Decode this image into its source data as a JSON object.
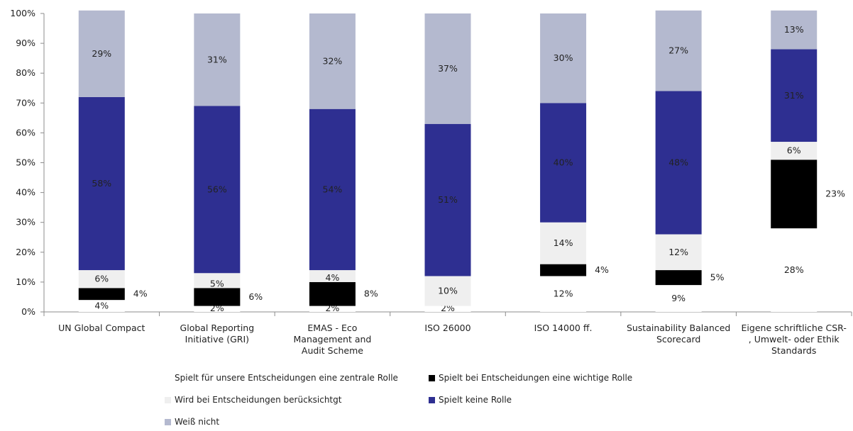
{
  "chart_data": {
    "type": "bar",
    "stacked": true,
    "ylim": [
      0,
      100
    ],
    "y_ticks": [
      "0%",
      "10%",
      "20%",
      "30%",
      "40%",
      "50%",
      "60%",
      "70%",
      "80%",
      "90%",
      "100%"
    ],
    "grid": false,
    "legend_position": "bottom",
    "categories": [
      "UN Global Compact",
      "Global Reporting Initiative (GRI)",
      "EMAS - Eco Management and Audit Scheme",
      "ISO 26000",
      "ISO 14000 ff.",
      "Sustainability Balanced Scorecard",
      "Eigene schriftliche CSR-, Umwelt- oder Ethik Standards"
    ],
    "category_lines": [
      [
        "UN Global Compact"
      ],
      [
        "Global Reporting",
        "Initiative (GRI)"
      ],
      [
        "EMAS - Eco",
        "Management and",
        "Audit Scheme"
      ],
      [
        "ISO 26000"
      ],
      [
        "ISO 14000 ff."
      ],
      [
        "Sustainability Balanced",
        "Scorecard"
      ],
      [
        "Eigene schriftliche CSR-",
        ", Umwelt- oder Ethik",
        "Standards"
      ]
    ],
    "series": [
      {
        "name": "Spielt für unsere Entscheidungen eine zentrale Rolle",
        "color": "#ffffff",
        "values": [
          4,
          2,
          2,
          2,
          12,
          9,
          28
        ],
        "labels": [
          "4%",
          "2%",
          "2%",
          "2%",
          "12%",
          "9%",
          "28%"
        ]
      },
      {
        "name": "Spielt bei Entscheidungen eine wichtige Rolle",
        "color": "#000000",
        "values": [
          4,
          6,
          8,
          0,
          4,
          5,
          23
        ],
        "labels": [
          "4%",
          "6%",
          "8%",
          "",
          "4%",
          "5%",
          "23%"
        ]
      },
      {
        "name": "Wird bei Entscheidungen berücksichtgt",
        "color": "#efefef",
        "values": [
          6,
          5,
          4,
          10,
          14,
          12,
          6
        ],
        "labels": [
          "6%",
          "5%",
          "4%",
          "10%",
          "14%",
          "12%",
          "6%"
        ]
      },
      {
        "name": "Spielt keine Rolle",
        "color": "#2e2f91",
        "values": [
          58,
          56,
          54,
          51,
          40,
          48,
          31
        ],
        "labels": [
          "58%",
          "56%",
          "54%",
          "51%",
          "40%",
          "48%",
          "31%"
        ]
      },
      {
        "name": "Weiß nicht",
        "color": "#b4b9cf",
        "values": [
          29,
          31,
          32,
          37,
          30,
          27,
          13
        ],
        "labels": [
          "29%",
          "31%",
          "32%",
          "37%",
          "30%",
          "27%",
          "13%"
        ]
      }
    ]
  }
}
